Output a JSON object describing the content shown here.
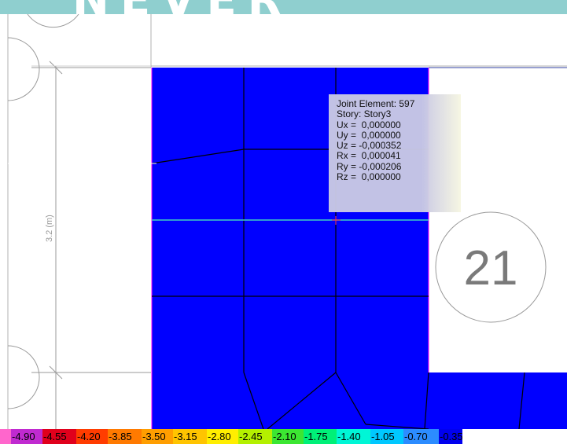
{
  "watermark": {
    "text": "NEVER"
  },
  "dimension_label": "3.2 (m)",
  "grid_bubble_label": "21",
  "tooltip": {
    "lines": [
      "Joint Element: 597",
      "Story: Story3",
      "Ux =  0,000000",
      "Uy =  0,000000",
      "Uz = -0,000352",
      "Rx =  0,000041",
      "Ry = -0,000206",
      "Rz =  0,000000"
    ]
  },
  "legend": {
    "cells": [
      {
        "label": "",
        "color": "#ff66cc"
      },
      {
        "label": "-4.90",
        "color": "#c02ad0"
      },
      {
        "label": "-4.55",
        "color": "#e0001c"
      },
      {
        "label": "-4.20",
        "color": "#ff3c00"
      },
      {
        "label": "-3.85",
        "color": "#ff7a00"
      },
      {
        "label": "-3.50",
        "color": "#ff9e00"
      },
      {
        "label": "-3.15",
        "color": "#ffc400"
      },
      {
        "label": "-2.80",
        "color": "#ffee00"
      },
      {
        "label": "-2.45",
        "color": "#b4f000"
      },
      {
        "label": "-2.10",
        "color": "#3ce632"
      },
      {
        "label": "-1.75",
        "color": "#00f078"
      },
      {
        "label": "-1.40",
        "color": "#00f6d6"
      },
      {
        "label": "-1.05",
        "color": "#00c8ff"
      },
      {
        "label": "-0.70",
        "color": "#2c8cff"
      },
      {
        "label": "-0.35",
        "color": "#0000ee"
      }
    ]
  },
  "colors": {
    "slab": "#0000ff",
    "mesh": "#000000",
    "selected_line": "#40d0c0",
    "slab_edge": "#ff00ff"
  }
}
